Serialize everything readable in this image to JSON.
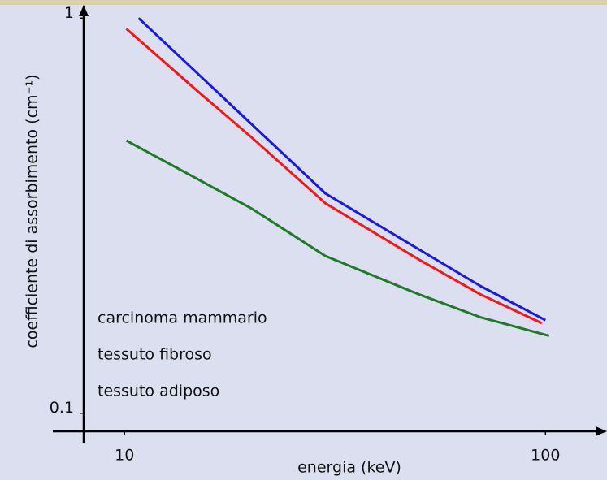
{
  "chart_data": {
    "type": "line",
    "xlabel": "energia (keV)",
    "ylabel": "coefficiente di assorbimento (cm⁻¹)",
    "xscale": "log",
    "yscale": "log",
    "xlim": [
      8,
      140
    ],
    "ylim": [
      0.09,
      1.05
    ],
    "xticks": [
      10,
      100
    ],
    "yticks": [
      0.1,
      1
    ],
    "grid": false,
    "series": [
      {
        "name": "carcinoma mammario",
        "color": "#1a1adf",
        "x": [
          10.8,
          15,
          20,
          30,
          50,
          70,
          100
        ],
        "values": [
          1.0,
          0.72,
          0.54,
          0.36,
          0.26,
          0.21,
          0.172
        ]
      },
      {
        "name": "tessuto fibroso",
        "color": "#f01818",
        "x": [
          10.1,
          15,
          20,
          30,
          50,
          70,
          98
        ],
        "values": [
          0.94,
          0.65,
          0.5,
          0.34,
          0.245,
          0.2,
          0.169
        ]
      },
      {
        "name": "tessuto adiposo",
        "color": "#1e7a28",
        "x": [
          10.1,
          15,
          20,
          30,
          50,
          70,
          102
        ],
        "values": [
          0.49,
          0.39,
          0.33,
          0.25,
          0.2,
          0.175,
          0.157
        ]
      }
    ]
  }
}
